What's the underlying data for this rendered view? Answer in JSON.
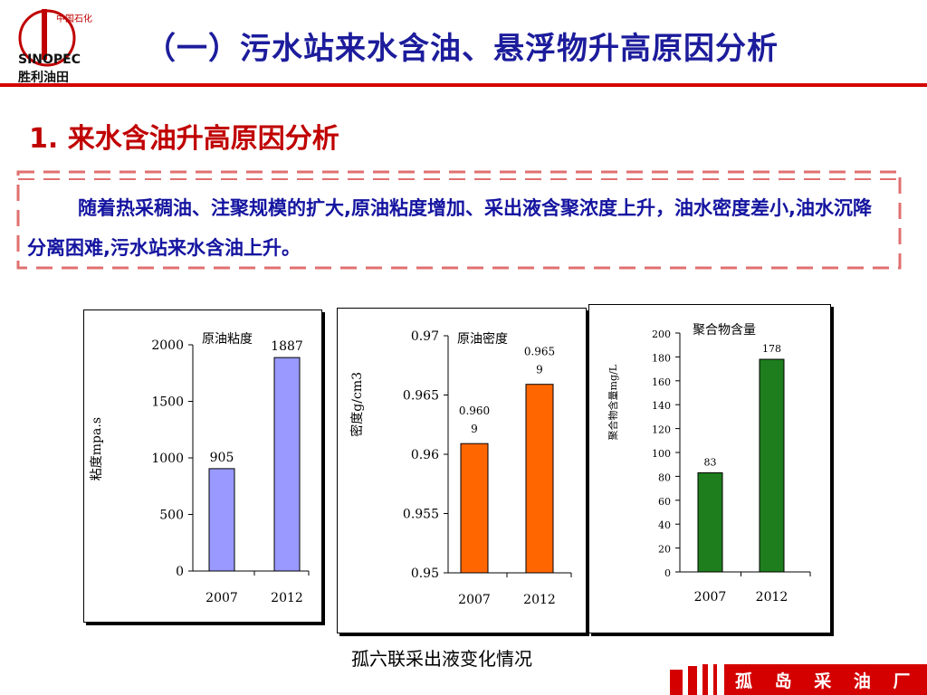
{
  "header": {
    "title": "（一）污水站来水含油、悬浮物升高原因分析",
    "logo_text_top": "中国石化",
    "logo_text_mid": "SINOPEC",
    "logo_text_bottom": "胜利油田"
  },
  "section": {
    "title": "1. 来水含油升高原因分析"
  },
  "note": {
    "text": "随着热采稠油、注聚规模的扩大,原油粘度增加、采出液含聚浓度上升，油水密度差小,油水沉降分离困难,污水站来水含油上升。"
  },
  "chart_data": [
    {
      "type": "bar",
      "categories": [
        "2007",
        "2012"
      ],
      "values": [
        905,
        1887
      ],
      "value_labels": [
        "905",
        "1887"
      ],
      "legend": "原油粘度",
      "ylabel": "粘度mpa.s",
      "ylim": [
        0,
        2000
      ],
      "yticks": [
        "0",
        "500",
        "1000",
        "1500",
        "2000"
      ],
      "color": "#9999ff"
    },
    {
      "type": "bar",
      "categories": [
        "2007",
        "2012"
      ],
      "values": [
        0.9609,
        0.9659
      ],
      "value_labels": [
        [
          "0.960",
          "9"
        ],
        [
          "0.965",
          "9"
        ]
      ],
      "legend": "原油密度",
      "ylabel": "密度g/cm3",
      "ylim": [
        0.95,
        0.97
      ],
      "yticks": [
        "0.95",
        "0.955",
        "0.96",
        "0.965",
        "0.97"
      ],
      "color": "#ff6600"
    },
    {
      "type": "bar",
      "categories": [
        "2007",
        "2012"
      ],
      "values": [
        83,
        178
      ],
      "value_labels": [
        "83",
        "178"
      ],
      "legend": "聚合物含量",
      "ylabel": "聚合物含量mg/L",
      "ylim": [
        0,
        200
      ],
      "yticks": [
        "0",
        "20",
        "40",
        "60",
        "80",
        "100",
        "120",
        "140",
        "160",
        "180",
        "200"
      ],
      "color": "#1e7e1e"
    }
  ],
  "caption": "孤六联采出液变化情况",
  "footer": {
    "label": "孤 岛 采 油 厂"
  },
  "colors": {
    "title": "#1c1c9c",
    "section": "#c00000",
    "note_text": "#1414a0",
    "rule": "#d40000",
    "footer": "#d40000"
  }
}
